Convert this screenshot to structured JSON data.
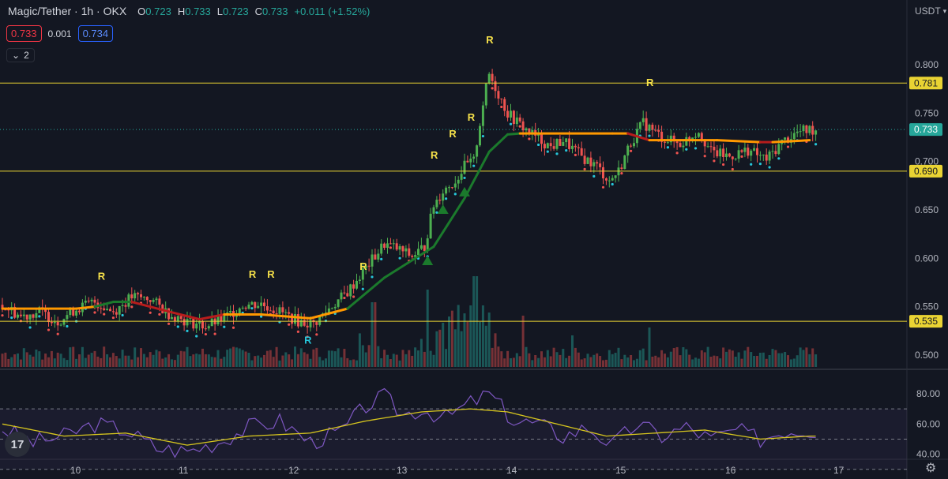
{
  "header": {
    "title": "Magic/Tether · 1h · OKX",
    "o_label": "O",
    "o_value": "0.723",
    "h_label": "H",
    "h_value": "0.733",
    "l_label": "L",
    "l_value": "0.723",
    "c_label": "C",
    "c_value": "0.733",
    "change": "+0.011 (+1.52%)"
  },
  "quote": {
    "sell": "0.733",
    "spread": "0.001",
    "buy": "0.734"
  },
  "indicator_toggle": {
    "count": "2"
  },
  "currency": "USDT",
  "colors": {
    "up": "#26a69a",
    "down": "#ef5350",
    "bright_up": "#4caf50",
    "level_line": "#e9d333",
    "rsi_line": "#7e57c2",
    "rsi_ma": "#d6c51e",
    "signal": "#f7e24a",
    "signal_dn": "#26c6da"
  },
  "chart_data": [
    {
      "type": "candlestick",
      "y_axis": {
        "ticks": [
          "0.500",
          "0.550",
          "0.600",
          "0.650",
          "0.700",
          "0.750",
          "0.800"
        ],
        "range": [
          0.49,
          0.835
        ]
      },
      "x_axis": {
        "ticks": [
          "10",
          "11",
          "12",
          "13",
          "14",
          "15",
          "16",
          "17"
        ]
      },
      "level_lines": [
        0.781,
        0.69,
        0.535
      ],
      "level_labels": [
        "0.781",
        "0.690",
        "0.535"
      ],
      "last_price": 0.733,
      "last_price_label": "0.733",
      "price_path": [
        [
          0,
          0.552
        ],
        [
          6,
          0.54
        ],
        [
          12,
          0.545
        ],
        [
          18,
          0.535
        ],
        [
          24,
          0.548
        ],
        [
          30,
          0.555
        ],
        [
          36,
          0.545
        ],
        [
          42,
          0.56
        ],
        [
          48,
          0.558
        ],
        [
          54,
          0.543
        ],
        [
          60,
          0.535
        ],
        [
          66,
          0.53
        ],
        [
          72,
          0.538
        ],
        [
          78,
          0.552
        ],
        [
          84,
          0.553
        ],
        [
          90,
          0.545
        ],
        [
          96,
          0.535
        ],
        [
          101,
          0.532
        ],
        [
          106,
          0.548
        ],
        [
          112,
          0.565
        ],
        [
          118,
          0.59
        ],
        [
          124,
          0.615
        ],
        [
          128,
          0.61
        ],
        [
          133,
          0.602
        ],
        [
          137,
          0.612
        ],
        [
          140,
          0.655
        ],
        [
          143,
          0.67
        ],
        [
          147,
          0.68
        ],
        [
          150,
          0.695
        ],
        [
          153,
          0.7
        ],
        [
          156,
          0.76
        ],
        [
          158,
          0.79
        ],
        [
          161,
          0.77
        ],
        [
          164,
          0.75
        ],
        [
          168,
          0.738
        ],
        [
          172,
          0.728
        ],
        [
          178,
          0.715
        ],
        [
          182,
          0.722
        ],
        [
          188,
          0.705
        ],
        [
          193,
          0.695
        ],
        [
          197,
          0.68
        ],
        [
          200,
          0.69
        ],
        [
          204,
          0.72
        ],
        [
          208,
          0.74
        ],
        [
          214,
          0.725
        ],
        [
          220,
          0.718
        ],
        [
          226,
          0.732
        ],
        [
          230,
          0.71
        ],
        [
          236,
          0.705
        ],
        [
          242,
          0.712
        ],
        [
          248,
          0.702
        ],
        [
          253,
          0.72
        ],
        [
          258,
          0.73
        ],
        [
          262,
          0.733
        ]
      ],
      "supertrend": [
        [
          0,
          0.548,
          "orange"
        ],
        [
          24,
          0.548,
          "orange"
        ],
        [
          30,
          0.55,
          "green"
        ],
        [
          36,
          0.555,
          "green"
        ],
        [
          42,
          0.555,
          "red"
        ],
        [
          54,
          0.545,
          "red"
        ],
        [
          64,
          0.537,
          "red"
        ],
        [
          72,
          0.542,
          "orange"
        ],
        [
          84,
          0.542,
          "orange"
        ],
        [
          100,
          0.538,
          "orange"
        ],
        [
          112,
          0.548,
          "green"
        ],
        [
          124,
          0.58,
          "green"
        ],
        [
          140,
          0.612,
          "green"
        ],
        [
          150,
          0.662,
          "green"
        ],
        [
          158,
          0.71,
          "green"
        ],
        [
          164,
          0.728,
          "green"
        ],
        [
          168,
          0.729,
          "orange"
        ],
        [
          198,
          0.729,
          "orange"
        ],
        [
          203,
          0.729,
          "red"
        ],
        [
          210,
          0.722,
          "orange"
        ],
        [
          232,
          0.722,
          "orange"
        ],
        [
          246,
          0.72,
          "red"
        ],
        [
          250,
          0.72,
          "orange"
        ],
        [
          262,
          0.722,
          "green"
        ]
      ],
      "signals": [
        {
          "label": "R",
          "x": 32,
          "y": 0.578,
          "color": "signal"
        },
        {
          "label": "R",
          "x": 81,
          "y": 0.58,
          "color": "signal"
        },
        {
          "label": "R",
          "x": 87,
          "y": 0.58,
          "color": "signal"
        },
        {
          "label": "R",
          "x": 117,
          "y": 0.588,
          "color": "signal"
        },
        {
          "label": "R",
          "x": 140,
          "y": 0.703,
          "color": "signal"
        },
        {
          "label": "R",
          "x": 146,
          "y": 0.725,
          "color": "signal"
        },
        {
          "label": "R",
          "x": 152,
          "y": 0.742,
          "color": "signal"
        },
        {
          "label": "R",
          "x": 158,
          "y": 0.822,
          "color": "signal"
        },
        {
          "label": "R",
          "x": 210,
          "y": 0.778,
          "color": "signal"
        },
        {
          "label": "R",
          "x": 99,
          "y": 0.512,
          "color": "signal_dn"
        }
      ],
      "triangles": [
        [
          138,
          0.597
        ],
        [
          143,
          0.65
        ],
        [
          150,
          0.668
        ]
      ]
    },
    {
      "type": "line",
      "name": "RSI",
      "y_axis": {
        "ticks": [
          "80.00",
          "60.00",
          "40.00"
        ]
      },
      "bands": [
        70,
        50,
        30
      ],
      "path": [
        [
          0,
          57
        ],
        [
          10,
          48
        ],
        [
          20,
          52
        ],
        [
          30,
          60
        ],
        [
          40,
          56
        ],
        [
          50,
          44
        ],
        [
          60,
          42
        ],
        [
          70,
          48
        ],
        [
          80,
          58
        ],
        [
          90,
          62
        ],
        [
          100,
          48
        ],
        [
          110,
          55
        ],
        [
          118,
          72
        ],
        [
          124,
          78
        ],
        [
          130,
          66
        ],
        [
          136,
          70
        ],
        [
          144,
          64
        ],
        [
          152,
          74
        ],
        [
          158,
          80
        ],
        [
          166,
          62
        ],
        [
          174,
          60
        ],
        [
          182,
          52
        ],
        [
          190,
          58
        ],
        [
          198,
          46
        ],
        [
          206,
          60
        ],
        [
          214,
          52
        ],
        [
          222,
          58
        ],
        [
          230,
          50
        ],
        [
          238,
          56
        ],
        [
          246,
          50
        ],
        [
          254,
          56
        ],
        [
          262,
          56
        ]
      ],
      "ma_path": [
        [
          0,
          60
        ],
        [
          20,
          52
        ],
        [
          40,
          54
        ],
        [
          60,
          46
        ],
        [
          80,
          52
        ],
        [
          100,
          54
        ],
        [
          118,
          62
        ],
        [
          136,
          68
        ],
        [
          152,
          70
        ],
        [
          164,
          68
        ],
        [
          180,
          60
        ],
        [
          196,
          52
        ],
        [
          212,
          54
        ],
        [
          228,
          56
        ],
        [
          246,
          50
        ],
        [
          262,
          52
        ]
      ]
    }
  ]
}
